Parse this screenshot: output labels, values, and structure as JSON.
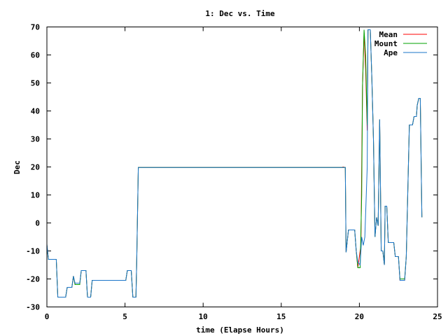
{
  "chart_data": {
    "type": "line",
    "title": "1: Dec vs. Time",
    "xlabel": "time (Elapse Hours)",
    "ylabel": "Dec",
    "xlim": [
      0,
      25
    ],
    "ylim": [
      -30,
      70
    ],
    "xticks": [
      0,
      5,
      10,
      15,
      20,
      25
    ],
    "yticks": [
      -30,
      -20,
      -10,
      0,
      10,
      20,
      30,
      40,
      50,
      60,
      70
    ],
    "grid": false,
    "legend_position": "top-right",
    "series": [
      {
        "name": "Mean",
        "color": "#ff0000",
        "points": [
          [
            0,
            -8
          ],
          [
            0.1,
            -13
          ],
          [
            0.6,
            -13
          ],
          [
            0.7,
            -26.5
          ],
          [
            1.2,
            -26.5
          ],
          [
            1.3,
            -23
          ],
          [
            1.6,
            -23
          ],
          [
            1.7,
            -19
          ],
          [
            1.8,
            -22
          ],
          [
            2.1,
            -22
          ],
          [
            2.2,
            -17
          ],
          [
            2.5,
            -17
          ],
          [
            2.6,
            -26.5
          ],
          [
            2.8,
            -26.5
          ],
          [
            2.9,
            -20.5
          ],
          [
            5.05,
            -20.5
          ],
          [
            5.15,
            -17
          ],
          [
            5.4,
            -17
          ],
          [
            5.5,
            -26.5
          ],
          [
            5.7,
            -26.5
          ],
          [
            5.75,
            -14
          ],
          [
            5.85,
            19.8
          ],
          [
            18.9,
            19.8
          ],
          [
            18.95,
            20
          ],
          [
            19.1,
            19.8
          ],
          [
            19.15,
            -10.5
          ],
          [
            19.3,
            -2.5
          ],
          [
            19.7,
            -2.5
          ],
          [
            19.8,
            -10
          ],
          [
            19.9,
            -16
          ],
          [
            20.1,
            -8
          ],
          [
            20.2,
            49
          ],
          [
            20.3,
            68
          ],
          [
            20.4,
            55
          ],
          [
            20.5,
            33
          ],
          [
            20.55,
            69
          ],
          [
            20.7,
            69
          ],
          [
            20.8,
            51
          ],
          [
            20.9,
            30
          ],
          [
            21.0,
            -5
          ],
          [
            21.1,
            2
          ],
          [
            21.2,
            -1
          ],
          [
            21.3,
            37
          ],
          [
            21.4,
            -10
          ],
          [
            21.5,
            -10
          ],
          [
            21.6,
            -15
          ],
          [
            21.65,
            6
          ],
          [
            21.75,
            6
          ],
          [
            21.85,
            -7
          ],
          [
            22.2,
            -7
          ],
          [
            22.3,
            -12
          ],
          [
            22.5,
            -12
          ],
          [
            22.6,
            -20.5
          ],
          [
            22.9,
            -20.5
          ],
          [
            23.0,
            -12
          ],
          [
            23.2,
            35
          ],
          [
            23.4,
            35
          ],
          [
            23.5,
            38
          ],
          [
            23.65,
            38
          ],
          [
            23.7,
            42
          ],
          [
            23.8,
            44.5
          ],
          [
            23.9,
            44.5
          ],
          [
            24.0,
            2
          ]
        ]
      },
      {
        "name": "Mount",
        "color": "#00a000",
        "points": [
          [
            0,
            -8
          ],
          [
            0.1,
            -13
          ],
          [
            0.6,
            -13
          ],
          [
            0.7,
            -26.5
          ],
          [
            1.2,
            -26.5
          ],
          [
            1.3,
            -23
          ],
          [
            1.6,
            -23
          ],
          [
            1.7,
            -19
          ],
          [
            1.8,
            -22
          ],
          [
            2.1,
            -22
          ],
          [
            2.2,
            -17
          ],
          [
            2.5,
            -17
          ],
          [
            2.6,
            -26.5
          ],
          [
            2.8,
            -26.5
          ],
          [
            2.9,
            -20.5
          ],
          [
            5.05,
            -20.5
          ],
          [
            5.15,
            -17
          ],
          [
            5.4,
            -17
          ],
          [
            5.5,
            -26.5
          ],
          [
            5.7,
            -26.5
          ],
          [
            5.75,
            -14
          ],
          [
            5.85,
            19.8
          ],
          [
            19.1,
            19.8
          ],
          [
            19.15,
            -10.5
          ],
          [
            19.3,
            -2.5
          ],
          [
            19.7,
            -2.5
          ],
          [
            19.8,
            -10
          ],
          [
            19.9,
            -16
          ],
          [
            20.05,
            -16
          ],
          [
            20.15,
            10
          ],
          [
            20.2,
            49
          ],
          [
            20.3,
            69
          ],
          [
            20.4,
            60
          ],
          [
            20.5,
            35
          ],
          [
            20.55,
            69
          ],
          [
            20.7,
            69
          ],
          [
            20.8,
            51
          ],
          [
            20.9,
            30
          ],
          [
            21.0,
            -5
          ],
          [
            21.1,
            2
          ],
          [
            21.2,
            -1
          ],
          [
            21.3,
            37
          ],
          [
            21.4,
            -10
          ],
          [
            21.5,
            -10
          ],
          [
            21.6,
            -15
          ],
          [
            21.65,
            6
          ],
          [
            21.75,
            6
          ],
          [
            21.85,
            -7
          ],
          [
            22.2,
            -7
          ],
          [
            22.3,
            -12
          ],
          [
            22.5,
            -12
          ],
          [
            22.6,
            -20
          ],
          [
            22.9,
            -20
          ],
          [
            23.0,
            -12
          ],
          [
            23.2,
            35
          ],
          [
            23.4,
            35
          ],
          [
            23.5,
            38
          ],
          [
            23.65,
            38
          ],
          [
            23.7,
            42
          ],
          [
            23.8,
            44.5
          ],
          [
            23.9,
            44.5
          ],
          [
            24.0,
            2
          ]
        ]
      },
      {
        "name": "Ape",
        "color": "#1a75c8",
        "points": [
          [
            0,
            -7.5
          ],
          [
            0.1,
            -13
          ],
          [
            0.6,
            -13
          ],
          [
            0.7,
            -26.5
          ],
          [
            1.2,
            -26.5
          ],
          [
            1.3,
            -23
          ],
          [
            1.6,
            -23
          ],
          [
            1.7,
            -19
          ],
          [
            1.8,
            -21.5
          ],
          [
            2.1,
            -21.5
          ],
          [
            2.2,
            -17
          ],
          [
            2.5,
            -17
          ],
          [
            2.6,
            -26.5
          ],
          [
            2.8,
            -26.5
          ],
          [
            2.9,
            -20.5
          ],
          [
            5.05,
            -20.5
          ],
          [
            5.15,
            -17
          ],
          [
            5.4,
            -17
          ],
          [
            5.5,
            -26.5
          ],
          [
            5.7,
            -26.5
          ],
          [
            5.75,
            -14
          ],
          [
            5.85,
            19.8
          ],
          [
            19.1,
            19.8
          ],
          [
            19.15,
            -10.5
          ],
          [
            19.3,
            -2.5
          ],
          [
            19.7,
            -2.5
          ],
          [
            19.8,
            -10
          ],
          [
            19.9,
            -14
          ],
          [
            20.05,
            -15
          ],
          [
            20.15,
            -5
          ],
          [
            20.25,
            -8
          ],
          [
            20.35,
            -5
          ],
          [
            20.5,
            20
          ],
          [
            20.55,
            69
          ],
          [
            20.7,
            69
          ],
          [
            20.8,
            51
          ],
          [
            20.9,
            30
          ],
          [
            21.0,
            -5
          ],
          [
            21.1,
            2
          ],
          [
            21.2,
            -1
          ],
          [
            21.3,
            37
          ],
          [
            21.4,
            -10
          ],
          [
            21.5,
            -10
          ],
          [
            21.6,
            -15
          ],
          [
            21.65,
            6
          ],
          [
            21.75,
            6
          ],
          [
            21.85,
            -7
          ],
          [
            22.2,
            -7
          ],
          [
            22.3,
            -12
          ],
          [
            22.5,
            -12
          ],
          [
            22.6,
            -20.5
          ],
          [
            22.9,
            -20.5
          ],
          [
            23.0,
            -12
          ],
          [
            23.2,
            35
          ],
          [
            23.4,
            35
          ],
          [
            23.5,
            38
          ],
          [
            23.65,
            38
          ],
          [
            23.7,
            42
          ],
          [
            23.8,
            44.5
          ],
          [
            23.9,
            44.5
          ],
          [
            24.0,
            2
          ]
        ]
      }
    ]
  }
}
